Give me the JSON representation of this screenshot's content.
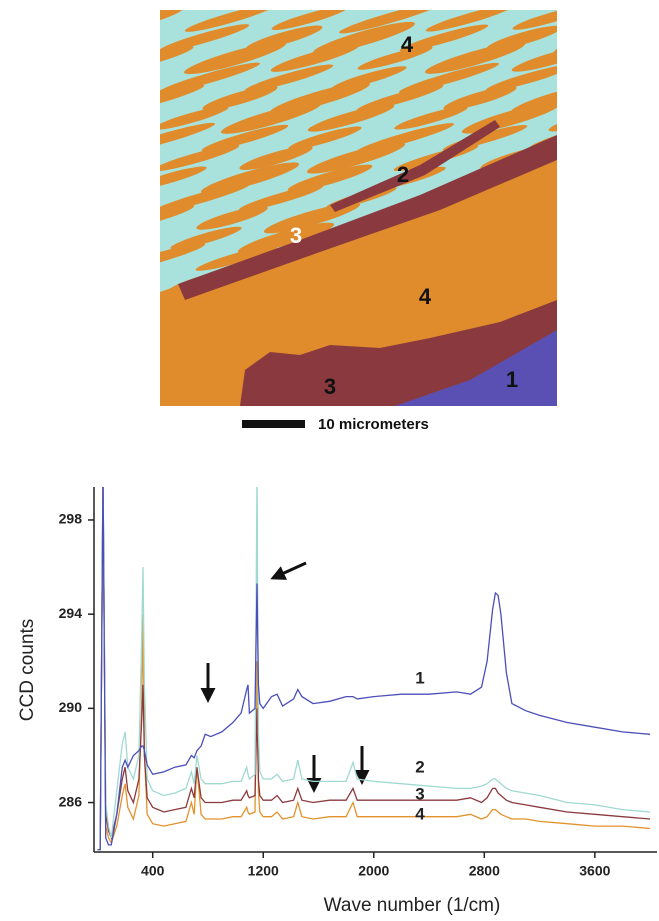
{
  "figure_map": {
    "region_labels": [
      "4",
      "2",
      "3",
      "4",
      "3",
      "1"
    ],
    "scale_bar_label": "10 micrometers"
  },
  "chart_data": {
    "type": "line",
    "x_label": "Wave number (1/cm)",
    "y_label": "CCD counts",
    "xlim": [
      -25,
      4050
    ],
    "ylim": [
      283.9,
      299.4
    ],
    "xticks": [
      400,
      1200,
      2000,
      2800,
      3600
    ],
    "yticks": [
      286,
      290,
      294,
      298
    ],
    "x": [
      0,
      20,
      40,
      60,
      80,
      100,
      140,
      180,
      200,
      220,
      260,
      300,
      320,
      330,
      340,
      360,
      400,
      480,
      560,
      640,
      680,
      700,
      720,
      750,
      780,
      820,
      900,
      980,
      1040,
      1080,
      1090,
      1100,
      1140,
      1155,
      1165,
      1175,
      1200,
      1260,
      1300,
      1340,
      1420,
      1450,
      1480,
      1560,
      1680,
      1800,
      1850,
      1880,
      2000,
      2200,
      2400,
      2600,
      2700,
      2780,
      2820,
      2860,
      2880,
      2900,
      2920,
      2960,
      3000,
      3100,
      3200,
      3400,
      3600,
      3800,
      4000
    ],
    "series": [
      {
        "name": "1",
        "color": "#4b4fb8",
        "values": [
          284.0,
          284.0,
          300,
          284.5,
          284.2,
          284.2,
          285.5,
          287.5,
          287.8,
          287.5,
          288.0,
          288.2,
          288.4,
          288.4,
          288.2,
          287.6,
          287.2,
          287.3,
          287.5,
          287.6,
          288.0,
          287.9,
          288.2,
          288.4,
          288.9,
          288.8,
          289.0,
          289.4,
          289.8,
          290.8,
          291.0,
          289.8,
          290.0,
          295.3,
          291.0,
          290.2,
          290.0,
          290.5,
          290.6,
          290.1,
          290.4,
          290.8,
          290.5,
          290.2,
          290.3,
          290.5,
          290.5,
          290.4,
          290.5,
          290.6,
          290.6,
          290.7,
          290.6,
          290.9,
          292.0,
          294.2,
          294.9,
          294.8,
          294.0,
          291.5,
          290.2,
          289.9,
          289.7,
          289.4,
          289.2,
          289.0,
          288.9
        ]
      },
      {
        "name": "2",
        "color": "#9fd9d1",
        "values": [
          284.0,
          284.0,
          300,
          286.0,
          285.0,
          284.5,
          286.5,
          288.5,
          289.0,
          287.5,
          287.0,
          288.0,
          293.0,
          296.0,
          291.0,
          287.0,
          286.5,
          286.3,
          286.4,
          286.6,
          287.3,
          286.8,
          288.0,
          287.0,
          286.8,
          286.8,
          286.8,
          286.9,
          286.9,
          287.5,
          287.2,
          287.0,
          287.2,
          300,
          289.0,
          287.3,
          287.0,
          287.0,
          287.2,
          286.9,
          287.0,
          287.8,
          287.0,
          286.9,
          286.9,
          286.9,
          287.7,
          287.0,
          286.9,
          286.8,
          286.7,
          286.6,
          286.6,
          286.7,
          286.8,
          287.0,
          287.0,
          286.9,
          286.8,
          286.6,
          286.5,
          286.4,
          286.3,
          286.0,
          285.9,
          285.7,
          285.6
        ]
      },
      {
        "name": "3",
        "color": "#8b3a3e",
        "values": [
          284.0,
          284.0,
          300,
          285.5,
          284.8,
          284.5,
          285.5,
          287.0,
          287.5,
          286.5,
          286.0,
          287.0,
          289.5,
          291.0,
          288.0,
          286.2,
          285.8,
          285.6,
          285.7,
          285.8,
          286.6,
          286.2,
          287.5,
          286.2,
          286.0,
          286.0,
          286.0,
          286.1,
          286.1,
          286.5,
          286.3,
          286.2,
          286.3,
          290.0,
          287.0,
          286.3,
          286.1,
          286.1,
          286.3,
          286.0,
          286.1,
          286.6,
          286.1,
          286.0,
          286.1,
          286.1,
          286.6,
          286.1,
          286.1,
          286.1,
          286.1,
          286.1,
          286.2,
          286.0,
          286.2,
          286.6,
          286.6,
          286.4,
          286.3,
          286.1,
          286.0,
          285.9,
          285.8,
          285.6,
          285.5,
          285.4,
          285.3
        ]
      },
      {
        "name": "4",
        "color": "#e3922c",
        "values": [
          284.0,
          284.0,
          300,
          285.0,
          284.5,
          284.3,
          285.0,
          286.3,
          286.8,
          285.8,
          285.3,
          286.3,
          290.0,
          294.0,
          288.0,
          285.5,
          285.1,
          285.0,
          285.1,
          285.2,
          286.0,
          285.5,
          287.5,
          285.5,
          285.3,
          285.3,
          285.3,
          285.4,
          285.4,
          285.8,
          285.6,
          285.5,
          285.6,
          292.0,
          286.5,
          285.6,
          285.4,
          285.4,
          285.6,
          285.3,
          285.4,
          286.0,
          285.4,
          285.3,
          285.4,
          285.4,
          286.0,
          285.4,
          285.4,
          285.4,
          285.4,
          285.4,
          285.5,
          285.3,
          285.4,
          285.7,
          285.7,
          285.6,
          285.5,
          285.4,
          285.3,
          285.3,
          285.2,
          285.1,
          285.0,
          285.0,
          284.9
        ]
      }
    ]
  }
}
